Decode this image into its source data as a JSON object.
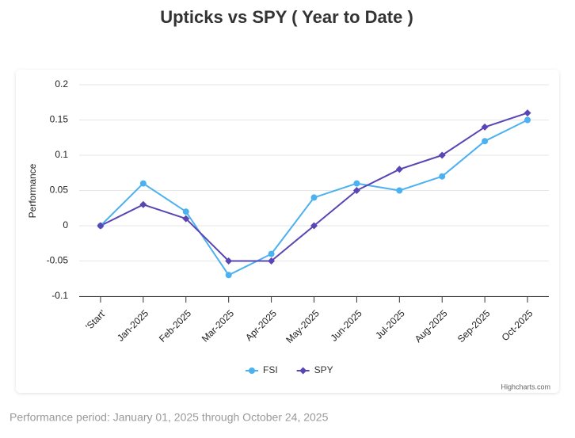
{
  "chart_data": {
    "type": "line",
    "title": "Upticks vs SPY ( Year to Date )",
    "y_label": "Performance",
    "categories": [
      "'Start'",
      "Jan-2025",
      "Feb-2025",
      "Mar-2025",
      "Apr-2025",
      "May-2025",
      "Jun-2025",
      "Jul-2025",
      "Aug-2025",
      "Sep-2025",
      "Oct-2025"
    ],
    "series": [
      {
        "name": "FSI",
        "color": "#4cb1f0",
        "marker": "circle",
        "values": [
          0,
          0.06,
          0.02,
          -0.07,
          -0.04,
          0.04,
          0.06,
          0.05,
          0.07,
          0.12,
          0.15
        ]
      },
      {
        "name": "SPY",
        "color": "#5a45b5",
        "marker": "diamond",
        "values": [
          0,
          0.03,
          0.01,
          -0.05,
          -0.05,
          0,
          0.05,
          0.08,
          0.1,
          0.14,
          0.16
        ]
      }
    ],
    "ylim": [
      -0.1,
      0.2
    ],
    "yticks": [
      -0.1,
      -0.05,
      0,
      0.05,
      0.1,
      0.15,
      0.2
    ],
    "grid": true,
    "legend": "bottom",
    "credit": "Highcharts.com",
    "footnote": "Performance period: January 01, 2025 through October 24, 2025"
  }
}
